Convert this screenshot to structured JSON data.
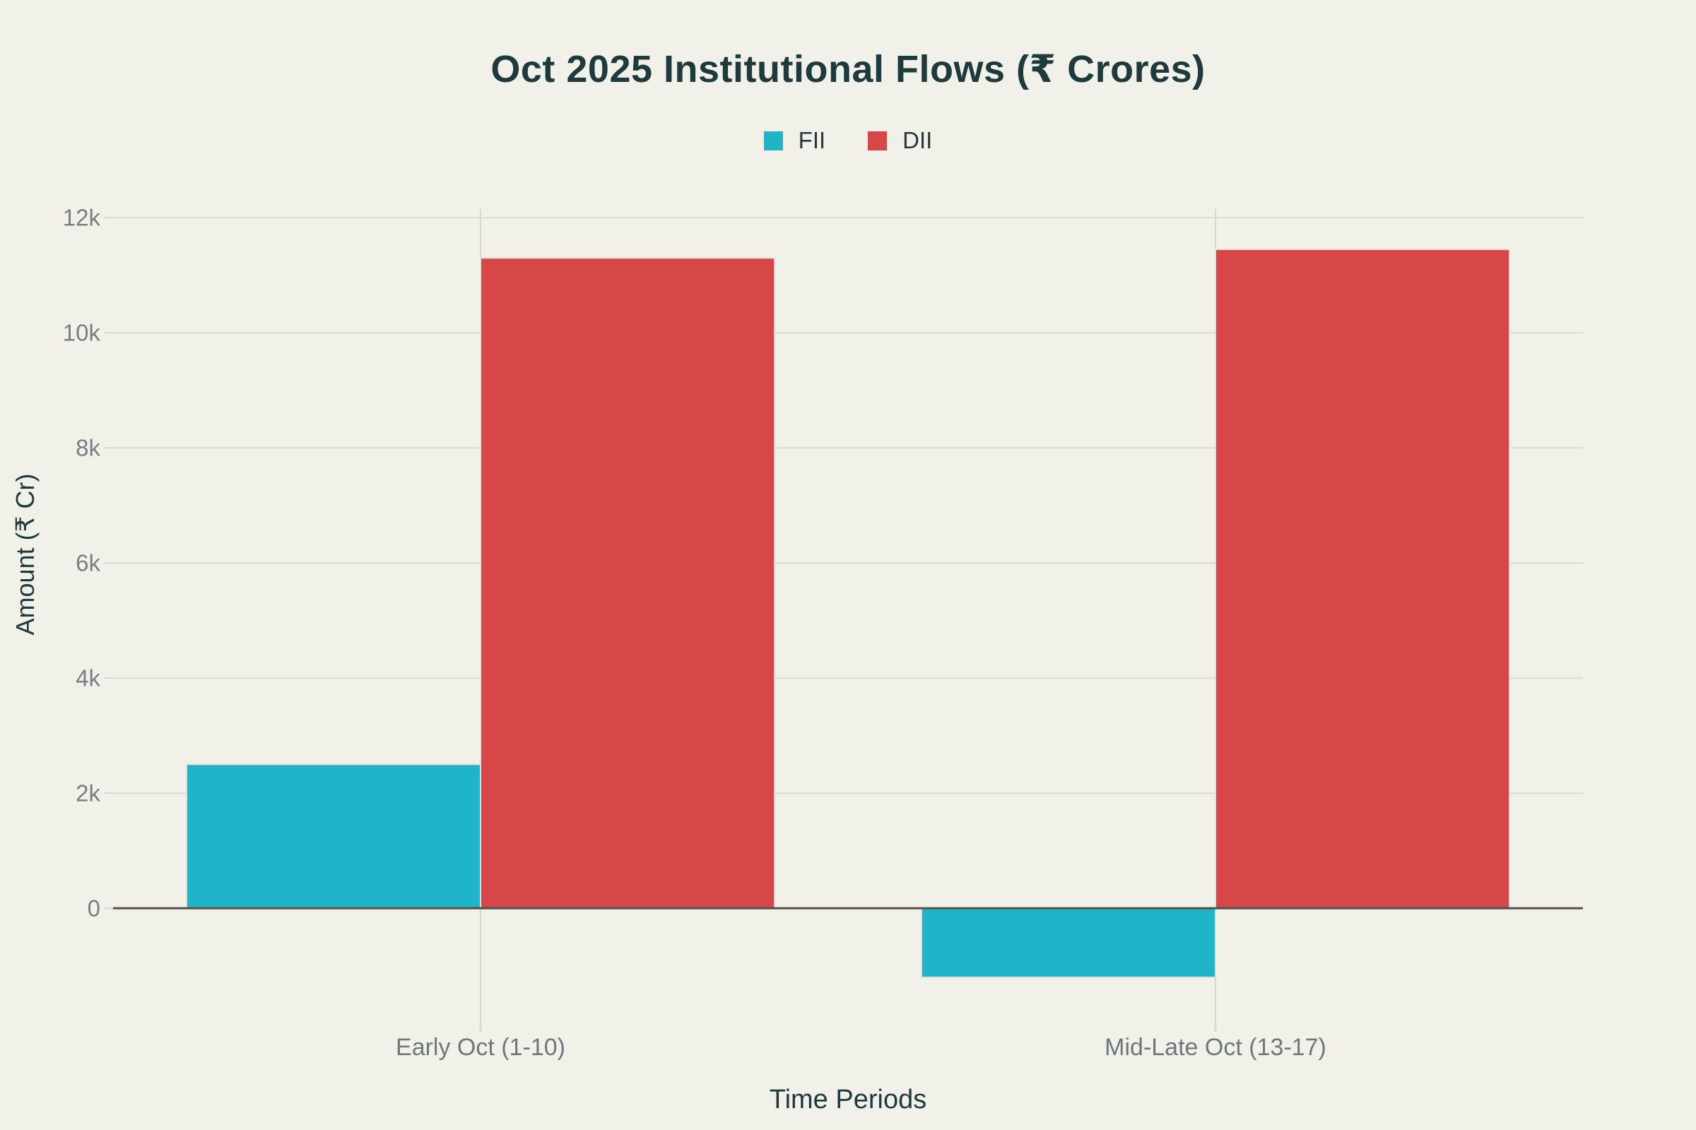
{
  "page": {
    "background": "#f1f1ea"
  },
  "chart_data": {
    "type": "bar",
    "title": "Oct 2025 Institutional Flows (₹ Crores)",
    "categories": [
      "Early Oct (1-10)",
      "Mid-Late Oct (13-17)"
    ],
    "series": [
      {
        "name": "FII",
        "color": "#1fb4c8",
        "values": [
          2500,
          -1200
        ]
      },
      {
        "name": "DII",
        "color": "#d84747",
        "values": [
          11300,
          11450
        ]
      }
    ],
    "xlabel": "Time Periods",
    "ylabel": "Amount (₹ Cr)",
    "ylim": [
      -2000,
      12150
    ],
    "yticks": [
      0,
      2000,
      4000,
      6000,
      8000,
      10000,
      12000
    ],
    "ytick_labels": [
      "0",
      "2k",
      "4k",
      "6k",
      "8k",
      "10k",
      "12k"
    ],
    "grid": true,
    "legend_position": "top-center"
  },
  "colors": {
    "background": "#f1f1ea",
    "fii": "#1fb4c8",
    "dii": "#d84747",
    "title_text": "#1d3a3c",
    "axis_title_text": "#1d3a3c",
    "ytick_text": "#767f82",
    "xtick_text": "#6e777a",
    "gridline": "#dcdbd3",
    "category_gridline": "#d8d7cf",
    "zero_line": "#55514b",
    "bar_stroke": "#e2e1d9"
  }
}
